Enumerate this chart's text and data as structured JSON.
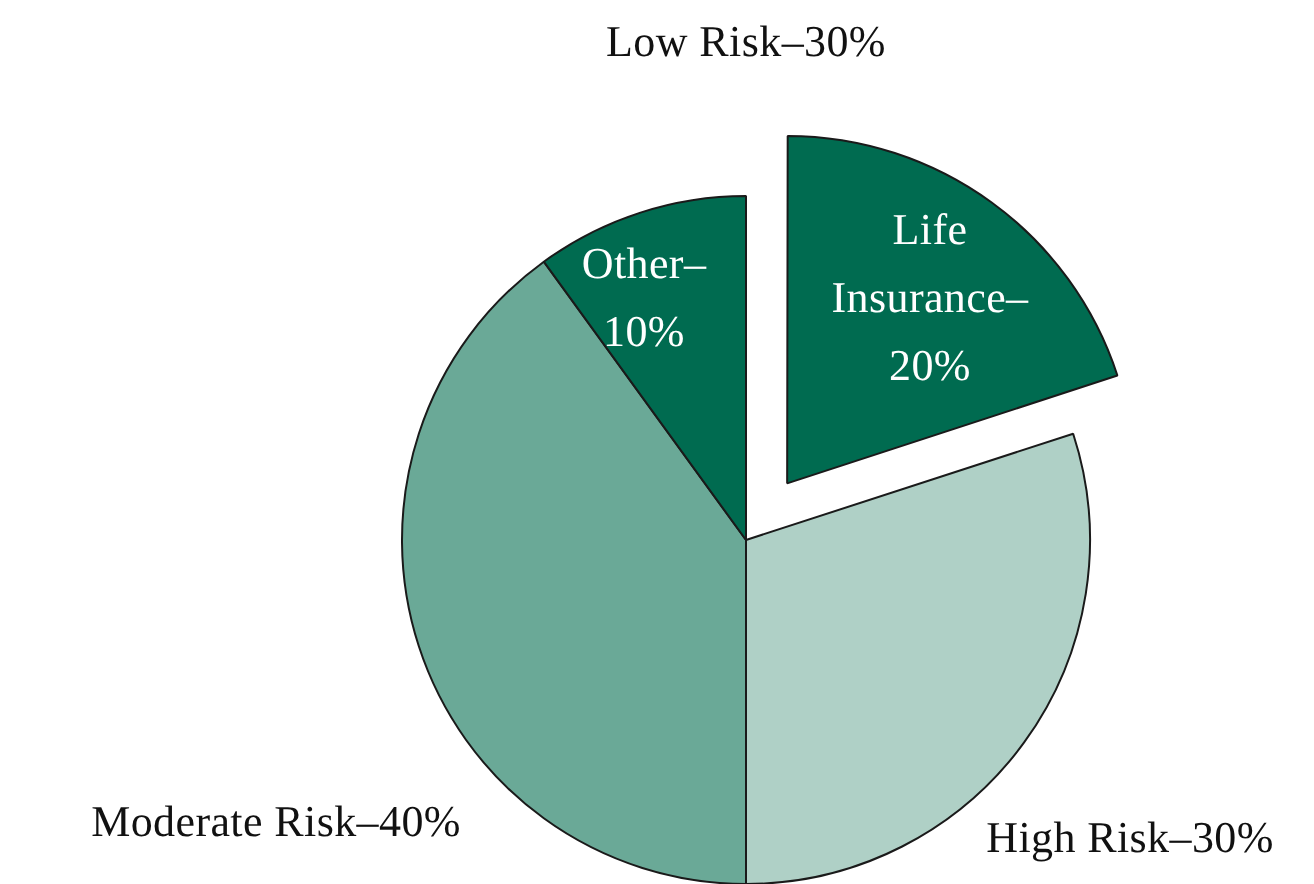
{
  "chart_data": {
    "type": "pie",
    "categories": [
      "Life Insurance–",
      "High Risk–",
      "Moderate Risk–",
      "Other–"
    ],
    "values": [
      20,
      30,
      40,
      10
    ],
    "colors": [
      "#006b50",
      "#afd0c6",
      "#6aa997",
      "#006b50"
    ],
    "value_labels": [
      "20%",
      "30%",
      "40%",
      "10%"
    ],
    "annotations": [
      "Low Risk–30%"
    ],
    "legend": false
  }
}
